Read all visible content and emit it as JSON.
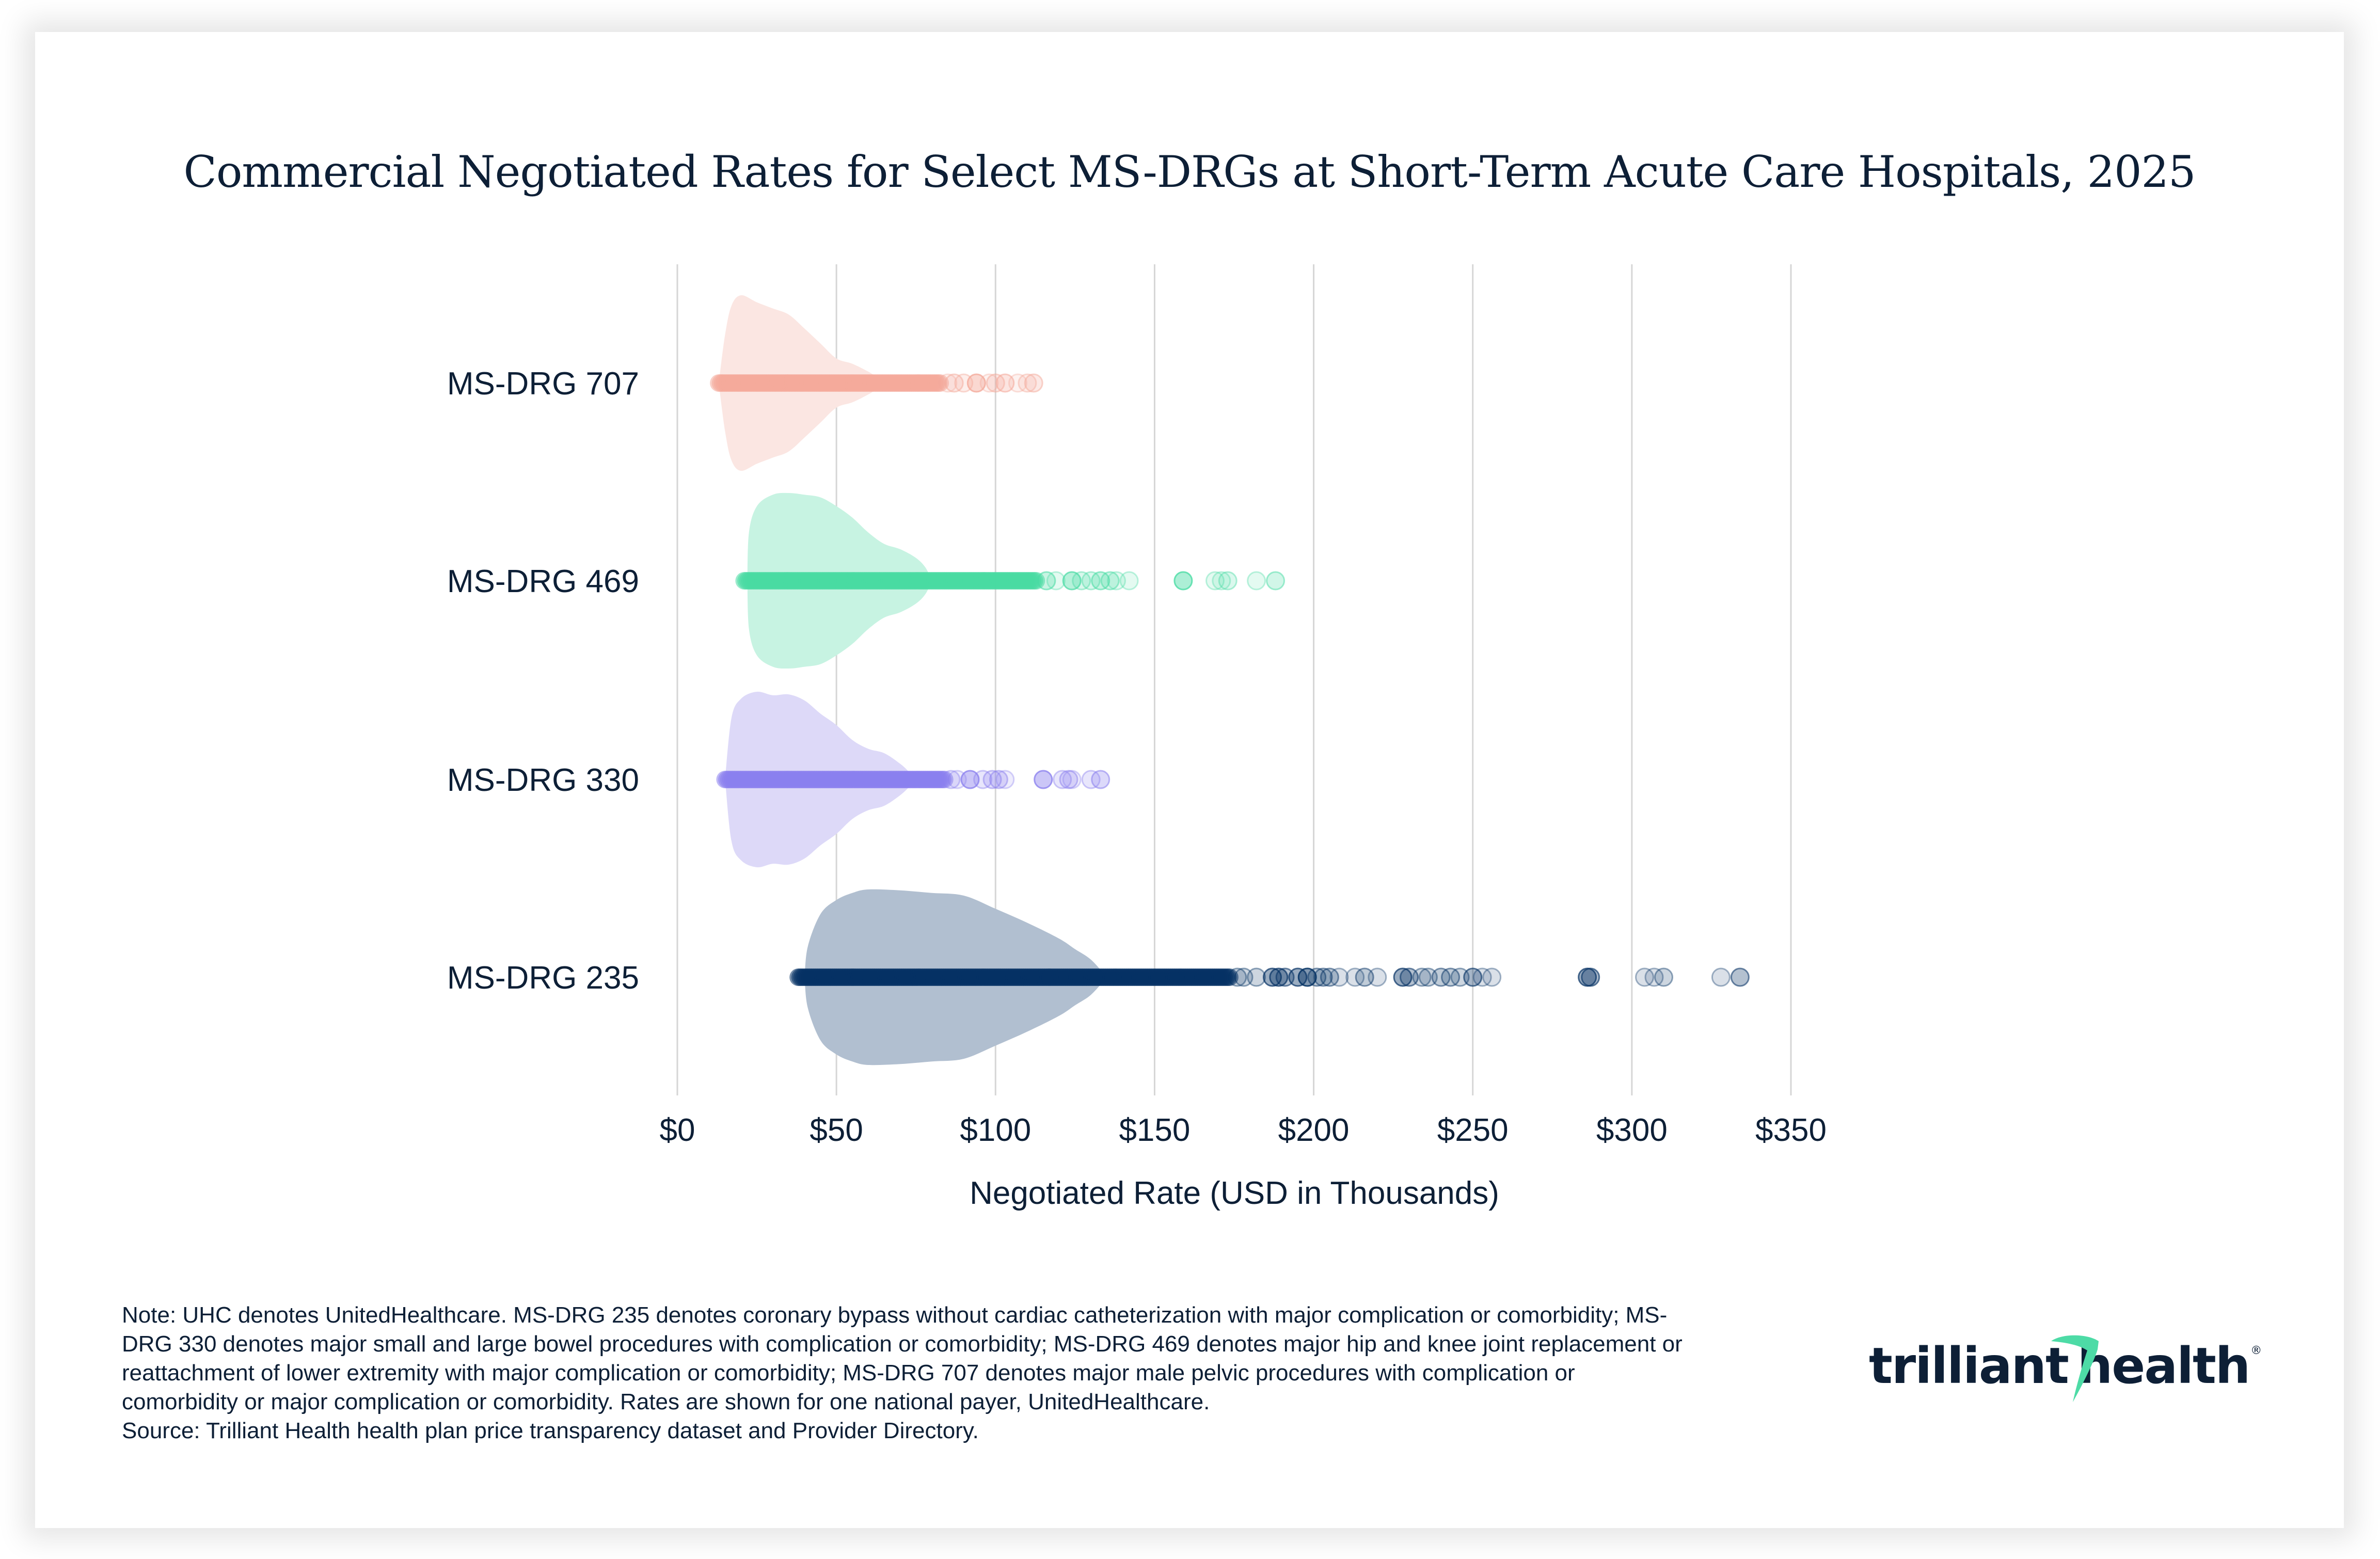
{
  "title": "Commercial Negotiated Rates for Select MS-DRGs at Short-Term Acute Care Hospitals, 2025",
  "note_lines": [
    "Note: UHC denotes UnitedHealthcare. MS-DRG 235 denotes coronary bypass without cardiac catheterization with major complication or comorbidity; MS-",
    "DRG 330 denotes major small and large bowel procedures with complication or comorbidity; MS-DRG 469 denotes major hip and knee joint replacement or",
    "reattachment of lower extremity with major complication or comorbidity; MS-DRG 707 denotes major male pelvic procedures with complication or",
    "comorbidity or major complication or comorbidity. Rates are shown for one national payer, UnitedHealthcare.",
    "Source: Trilliant Health health plan price transparency dataset and Provider Directory."
  ],
  "logo": {
    "text_left": "trilliant",
    "text_right": "health",
    "registered": "®",
    "accent_color": "#4ddba6",
    "text_color": "#0d1f36"
  },
  "chart_data": {
    "type": "scatter",
    "subtype": "violin-strip",
    "title": "Commercial Negotiated Rates for Select MS-DRGs at Short-Term Acute Care Hospitals, 2025",
    "xlabel": "Negotiated Rate (USD in Thousands)",
    "ylabel": "",
    "xlim": [
      0,
      350
    ],
    "xticks": [
      0,
      50,
      100,
      150,
      200,
      250,
      300,
      350
    ],
    "xtick_labels": [
      "$0",
      "$50",
      "$100",
      "$150",
      "$200",
      "$250",
      "$300",
      "$350"
    ],
    "grid": "vertical",
    "legend": "none",
    "categories": [
      "MS-DRG 707",
      "MS-DRG 469",
      "MS-DRG 330",
      "MS-DRG 235"
    ],
    "series": [
      {
        "name": "MS-DRG 707",
        "color": "#f4a99a",
        "violin_color": "#fbe6e2",
        "dense_range": [
          13,
          83
        ],
        "violin_density": [
          [
            13,
            0.0
          ],
          [
            15,
            0.55
          ],
          [
            17,
            0.88
          ],
          [
            20,
            1.0
          ],
          [
            25,
            0.92
          ],
          [
            30,
            0.85
          ],
          [
            35,
            0.78
          ],
          [
            40,
            0.62
          ],
          [
            45,
            0.45
          ],
          [
            50,
            0.28
          ],
          [
            55,
            0.22
          ],
          [
            60,
            0.13
          ],
          [
            63,
            0.06
          ],
          [
            65,
            0.0
          ]
        ],
        "outliers": [
          [
            85,
            0.3
          ],
          [
            87,
            0.5
          ],
          [
            90,
            0.4
          ],
          [
            94,
            0.9
          ],
          [
            98,
            0.3
          ],
          [
            100,
            0.5
          ],
          [
            103,
            0.6
          ],
          [
            107,
            0.3
          ],
          [
            110,
            0.4
          ],
          [
            112,
            0.5
          ]
        ]
      },
      {
        "name": "MS-DRG 469",
        "color": "#48dba3",
        "violin_color": "#c7f3e2",
        "dense_range": [
          21,
          113
        ],
        "violin_density": [
          [
            22,
            0.0
          ],
          [
            22.5,
            0.55
          ],
          [
            25,
            0.85
          ],
          [
            30,
            0.98
          ],
          [
            35,
            1.0
          ],
          [
            40,
            0.98
          ],
          [
            45,
            0.95
          ],
          [
            50,
            0.85
          ],
          [
            55,
            0.72
          ],
          [
            60,
            0.55
          ],
          [
            65,
            0.42
          ],
          [
            70,
            0.36
          ],
          [
            75,
            0.26
          ],
          [
            78,
            0.15
          ],
          [
            80,
            0.0
          ]
        ],
        "outliers": [
          [
            116,
            0.6
          ],
          [
            119,
            0.3
          ],
          [
            124,
            0.8
          ],
          [
            127,
            0.4
          ],
          [
            130,
            0.4
          ],
          [
            133,
            0.6
          ],
          [
            136,
            0.5
          ],
          [
            138,
            0.3
          ],
          [
            142,
            0.3
          ],
          [
            159,
            0.9
          ],
          [
            169,
            0.3
          ],
          [
            171,
            0.3
          ],
          [
            173,
            0.4
          ],
          [
            182,
            0.3
          ],
          [
            188,
            0.5
          ]
        ]
      },
      {
        "name": "MS-DRG 330",
        "color": "#8b80ee",
        "violin_color": "#ddd9f8",
        "dense_range": [
          15,
          84
        ],
        "violin_density": [
          [
            15,
            0.0
          ],
          [
            17,
            0.7
          ],
          [
            20,
            0.92
          ],
          [
            25,
            1.0
          ],
          [
            30,
            0.96
          ],
          [
            35,
            0.97
          ],
          [
            40,
            0.9
          ],
          [
            45,
            0.75
          ],
          [
            50,
            0.62
          ],
          [
            55,
            0.45
          ],
          [
            60,
            0.35
          ],
          [
            65,
            0.3
          ],
          [
            70,
            0.18
          ],
          [
            73,
            0.08
          ],
          [
            75,
            0.0
          ]
        ],
        "outliers": [
          [
            86,
            0.4
          ],
          [
            88,
            0.3
          ],
          [
            92,
            0.9
          ],
          [
            96,
            0.4
          ],
          [
            99,
            0.5
          ],
          [
            101,
            0.5
          ],
          [
            103,
            0.3
          ],
          [
            115,
            0.9
          ],
          [
            121,
            0.4
          ],
          [
            123,
            0.5
          ],
          [
            124,
            0.3
          ],
          [
            130,
            0.4
          ],
          [
            133,
            0.6
          ]
        ]
      },
      {
        "name": "MS-DRG 235",
        "color": "#053264",
        "violin_color": "#b1bfd0",
        "dense_range": [
          38,
          174
        ],
        "violin_density": [
          [
            40,
            0.0
          ],
          [
            41,
            0.35
          ],
          [
            45,
            0.72
          ],
          [
            50,
            0.88
          ],
          [
            55,
            0.96
          ],
          [
            60,
            1.0
          ],
          [
            70,
            0.99
          ],
          [
            80,
            0.96
          ],
          [
            90,
            0.93
          ],
          [
            100,
            0.78
          ],
          [
            110,
            0.62
          ],
          [
            120,
            0.44
          ],
          [
            125,
            0.32
          ],
          [
            130,
            0.2
          ],
          [
            135,
            0.0
          ]
        ],
        "outliers": [
          [
            176,
            0.4
          ],
          [
            178,
            0.4
          ],
          [
            182,
            0.4
          ],
          [
            187,
            0.8
          ],
          [
            189,
            0.8
          ],
          [
            191,
            0.6
          ],
          [
            195,
            0.8
          ],
          [
            198,
            1.0
          ],
          [
            201,
            0.5
          ],
          [
            203,
            0.5
          ],
          [
            205,
            0.5
          ],
          [
            208,
            0.3
          ],
          [
            213,
            0.3
          ],
          [
            216,
            0.5
          ],
          [
            220,
            0.3
          ],
          [
            228,
            0.8
          ],
          [
            230,
            0.6
          ],
          [
            234,
            0.4
          ],
          [
            236,
            0.4
          ],
          [
            240,
            0.5
          ],
          [
            243,
            0.5
          ],
          [
            246,
            0.4
          ],
          [
            250,
            0.7
          ],
          [
            253,
            0.3
          ],
          [
            256,
            0.3
          ],
          [
            286,
            0.8
          ],
          [
            287,
            0.7
          ],
          [
            304,
            0.3
          ],
          [
            307,
            0.3
          ],
          [
            310,
            0.4
          ],
          [
            328,
            0.3
          ],
          [
            334,
            0.6
          ]
        ]
      }
    ]
  }
}
